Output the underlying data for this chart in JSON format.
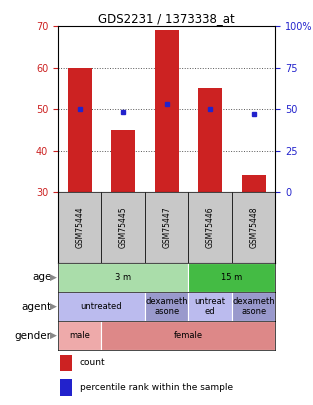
{
  "title": "GDS2231 / 1373338_at",
  "samples": [
    "GSM75444",
    "GSM75445",
    "GSM75447",
    "GSM75446",
    "GSM75448"
  ],
  "bar_bottoms": [
    30,
    30,
    30,
    30,
    30
  ],
  "bar_tops": [
    60,
    45,
    69,
    55,
    34
  ],
  "percentile_values": [
    50,
    48,
    53,
    50,
    47
  ],
  "ylim": [
    30,
    70
  ],
  "yticks_left": [
    30,
    40,
    50,
    60,
    70
  ],
  "yticks_right": [
    0,
    25,
    50,
    75,
    100
  ],
  "bar_color": "#cc2222",
  "dot_color": "#2222cc",
  "sample_bg_color": "#c8c8c8",
  "age_groups": [
    {
      "label": "3 m",
      "start": 0,
      "end": 3,
      "color": "#aaddaa"
    },
    {
      "label": "15 m",
      "start": 3,
      "end": 5,
      "color": "#44bb44"
    }
  ],
  "agent_groups": [
    {
      "label": "untreated",
      "start": 0,
      "end": 2,
      "color": "#bbbbee"
    },
    {
      "label": "dexameth\nasone",
      "start": 2,
      "end": 3,
      "color": "#9999cc"
    },
    {
      "label": "untreat\ned",
      "start": 3,
      "end": 4,
      "color": "#bbbbee"
    },
    {
      "label": "dexameth\nasone",
      "start": 4,
      "end": 5,
      "color": "#9999cc"
    }
  ],
  "gender_groups": [
    {
      "label": "male",
      "start": 0,
      "end": 1,
      "color": "#eeaaaa"
    },
    {
      "label": "female",
      "start": 1,
      "end": 5,
      "color": "#dd8888"
    }
  ],
  "row_labels": [
    "age",
    "agent",
    "gender"
  ],
  "legend_items": [
    {
      "color": "#cc2222",
      "label": "count"
    },
    {
      "color": "#2222cc",
      "label": "percentile rank within the sample"
    }
  ]
}
